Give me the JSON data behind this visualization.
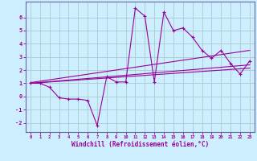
{
  "title": "",
  "xlabel": "Windchill (Refroidissement éolien,°C)",
  "background_color": "#cceeff",
  "grid_color": "#aacccc",
  "line_color": "#990099",
  "spine_color": "#666699",
  "xlim": [
    -0.5,
    23.5
  ],
  "ylim": [
    -2.7,
    7.2
  ],
  "xticks": [
    0,
    1,
    2,
    3,
    4,
    5,
    6,
    7,
    8,
    9,
    10,
    11,
    12,
    13,
    14,
    15,
    16,
    17,
    18,
    19,
    20,
    21,
    22,
    23
  ],
  "yticks": [
    -2,
    -1,
    0,
    1,
    2,
    3,
    4,
    5,
    6
  ],
  "line1_x": [
    0,
    1,
    2,
    3,
    4,
    5,
    6,
    7,
    8,
    9,
    10,
    11,
    12,
    13,
    14,
    15,
    16,
    17,
    18,
    19,
    20,
    21,
    22,
    23
  ],
  "line1_y": [
    1.0,
    1.0,
    0.7,
    -0.1,
    -0.2,
    -0.2,
    -0.3,
    -2.2,
    1.5,
    1.1,
    1.1,
    6.7,
    6.1,
    1.1,
    6.4,
    5.0,
    5.2,
    4.5,
    3.5,
    2.9,
    3.5,
    2.5,
    1.7,
    2.7
  ],
  "line2_x": [
    0,
    23
  ],
  "line2_y": [
    1.0,
    2.4
  ],
  "line3_x": [
    0,
    23
  ],
  "line3_y": [
    1.0,
    2.15
  ],
  "line4_x": [
    0,
    23
  ],
  "line4_y": [
    1.05,
    3.5
  ]
}
